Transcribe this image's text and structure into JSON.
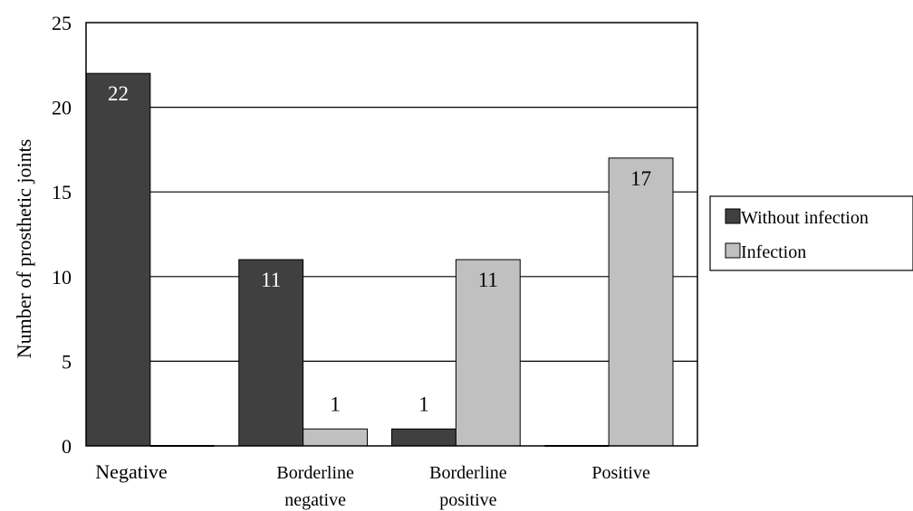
{
  "chart_data": {
    "type": "bar",
    "categories": [
      "Negative",
      "Borderline negative",
      "Borderline positive",
      "Positive"
    ],
    "category_lines": [
      [
        "Negative"
      ],
      [
        "Borderline",
        "negative"
      ],
      [
        "Borderline",
        "positive"
      ],
      [
        "Positive"
      ]
    ],
    "series": [
      {
        "name": "Without infection",
        "values": [
          22,
          11,
          1,
          0
        ],
        "color": "#404040"
      },
      {
        "name": "Infection",
        "values": [
          0,
          1,
          11,
          17
        ],
        "color": "#c0c0c0"
      }
    ],
    "data_labels": [
      [
        "22",
        "11",
        "1",
        ""
      ],
      [
        "",
        "1",
        "11",
        "17"
      ]
    ],
    "title": "",
    "xlabel": "",
    "ylabel": "Number of  prosthetic  joints",
    "ylim": [
      0,
      25
    ],
    "yticks": [
      0,
      5,
      10,
      15,
      20,
      25
    ],
    "grid": true,
    "legend_position": "right"
  }
}
